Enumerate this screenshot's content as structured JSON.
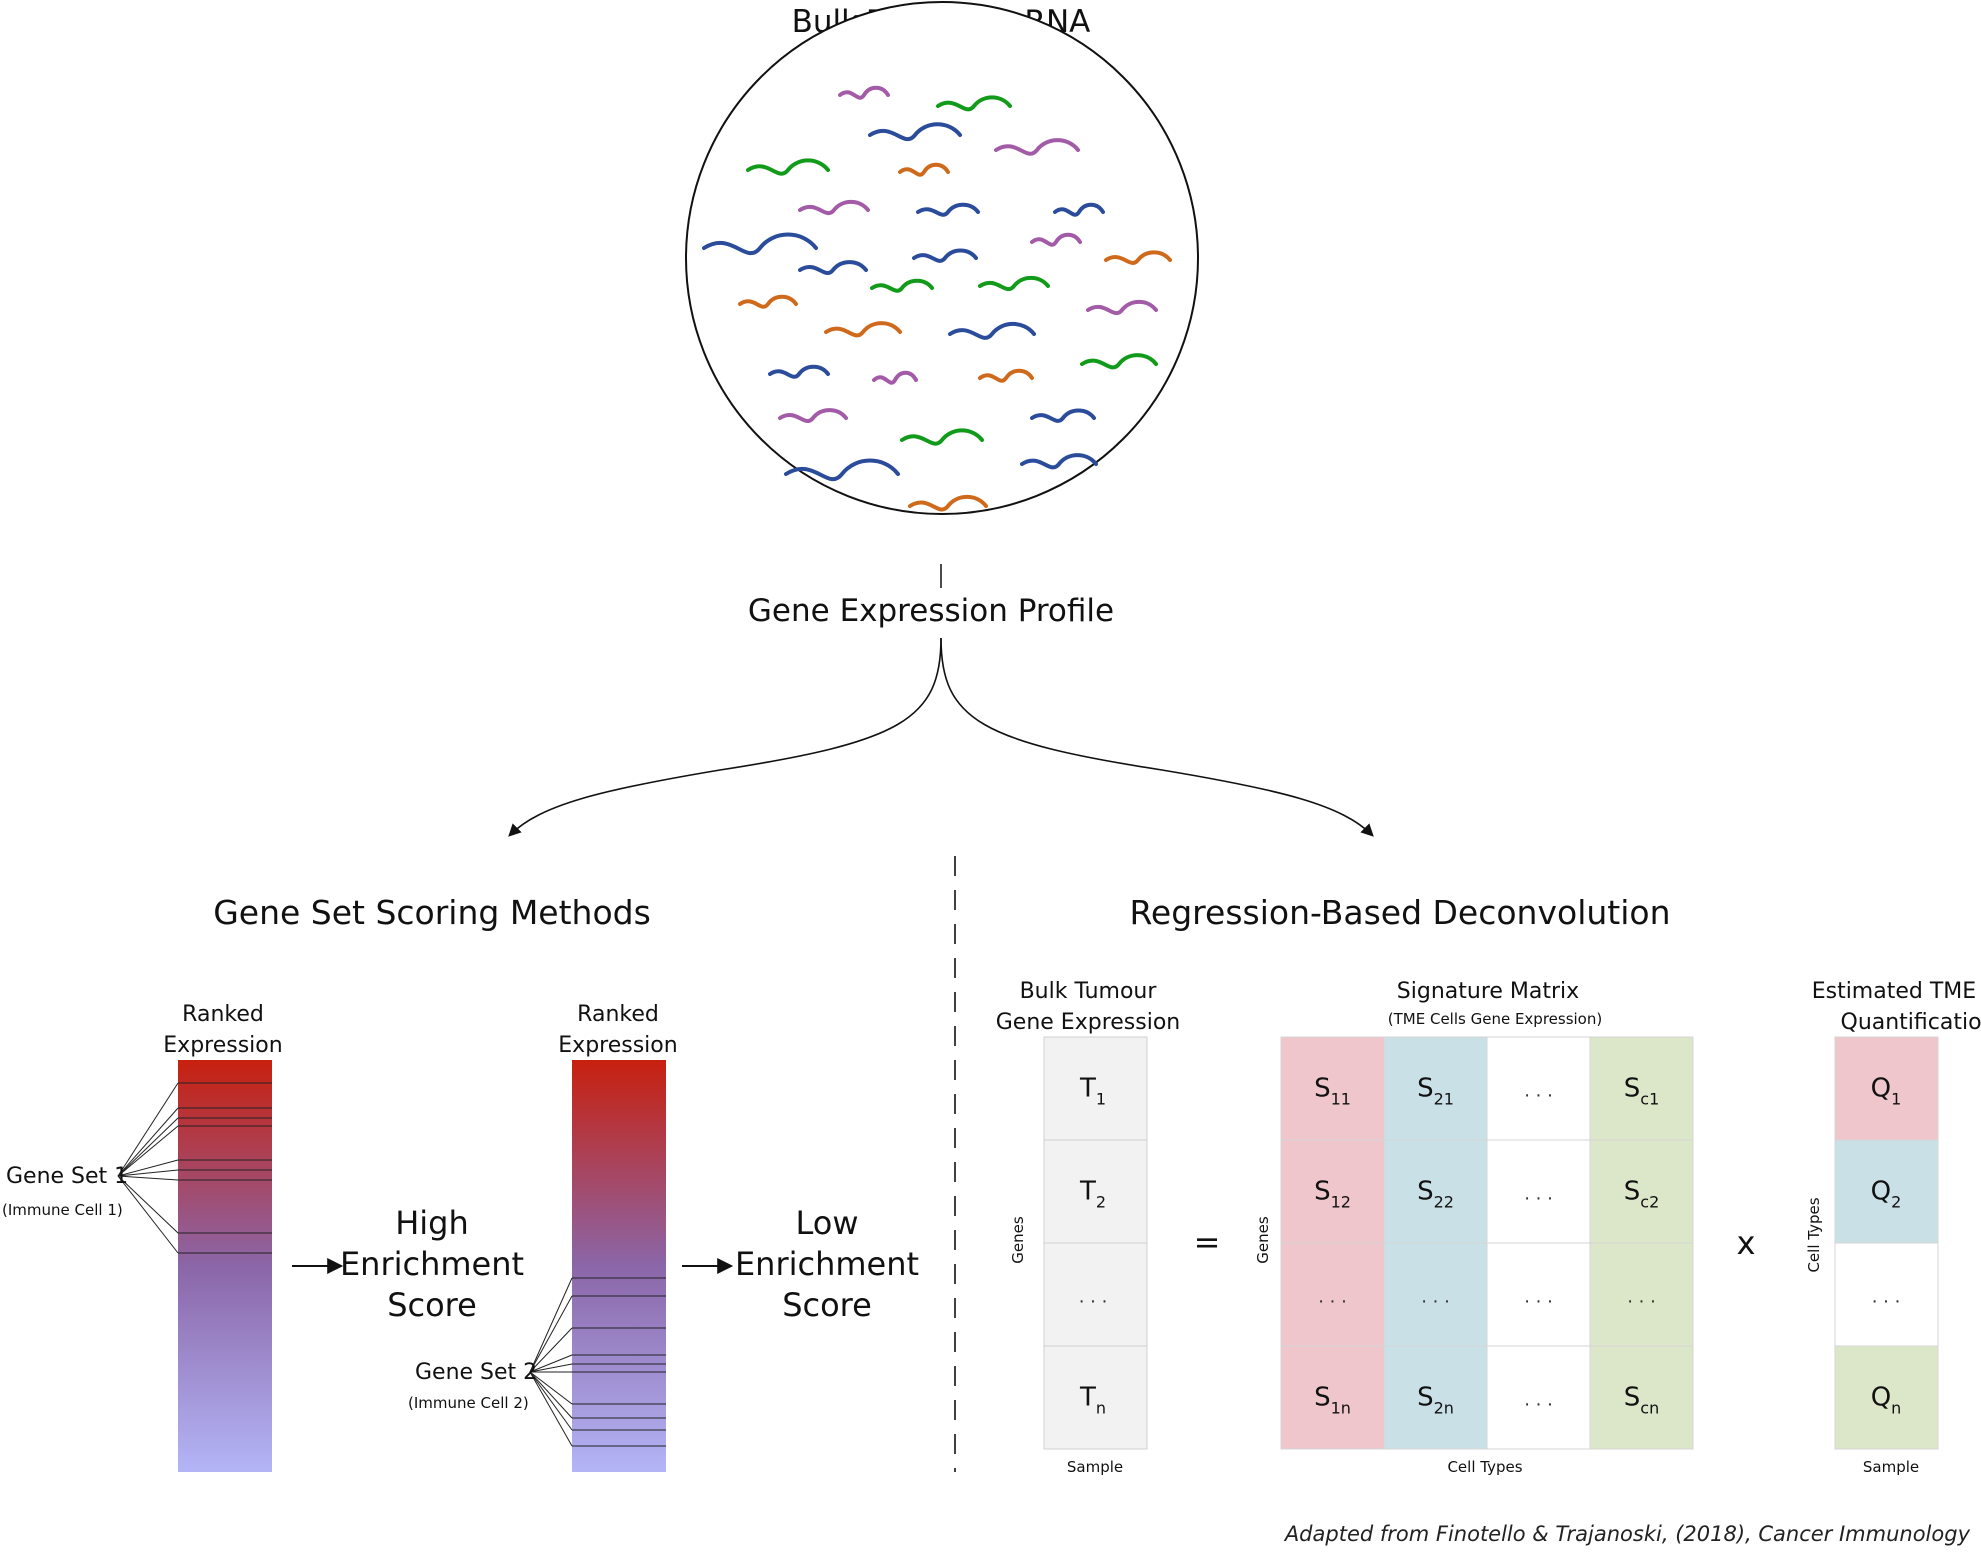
{
  "title": "Bulk Tumour mRNA",
  "profile_label": "Gene Expression Profile",
  "left_section": {
    "title": "Gene Set Scoring Methods",
    "bar1_label": [
      "Ranked",
      "Expression"
    ],
    "bar2_label": [
      "Ranked",
      "Expression"
    ],
    "gene_set_1": "Gene Set 1",
    "gene_set_1_sub": "(Immune Cell 1)",
    "gene_set_2": "Gene Set 2",
    "gene_set_2_sub": "(Immune Cell 2)",
    "high_score": [
      "High",
      "Enrichment",
      "Score"
    ],
    "low_score": [
      "Low",
      "Enrichment",
      "Score"
    ]
  },
  "right_section": {
    "title": "Regression-Based Deconvolution",
    "bulk_label": [
      "Bulk Tumour",
      "Gene Expression"
    ],
    "signature_label": "Signature Matrix",
    "signature_sub": "(TME Cells Gene Expression)",
    "estimated_label": [
      "Estimated TME Cell",
      "Quantification"
    ],
    "genes": "Genes",
    "cell_types": "Cell Types",
    "sample": "Sample",
    "equals": "=",
    "times": "x",
    "dots": "...",
    "T": [
      [
        "T",
        "1"
      ],
      [
        "T",
        "2"
      ],
      [
        "...",
        ""
      ],
      [
        "T",
        "n"
      ]
    ],
    "S": [
      [
        [
          "S",
          "11"
        ],
        [
          "S",
          "21"
        ],
        [
          "...",
          ""
        ],
        [
          "S",
          "c1"
        ]
      ],
      [
        [
          "S",
          "12"
        ],
        [
          "S",
          "22"
        ],
        [
          "...",
          ""
        ],
        [
          "S",
          "c2"
        ]
      ],
      [
        [
          "...",
          ""
        ],
        [
          "...",
          ""
        ],
        [
          "...",
          ""
        ],
        [
          "...",
          ""
        ]
      ],
      [
        [
          "S",
          "1n"
        ],
        [
          "S",
          "2n"
        ],
        [
          "...",
          ""
        ],
        [
          "S",
          "cn"
        ]
      ]
    ],
    "Q": [
      [
        "Q",
        "1"
      ],
      [
        "Q",
        "2"
      ],
      [
        "...",
        ""
      ],
      [
        "Q",
        "n"
      ]
    ]
  },
  "colors": {
    "purple": "#a35ba7",
    "green": "#129a1a",
    "blue": "#2b4c9b",
    "orange": "#cf6a1c",
    "red_top": "#c8200e",
    "mid_purple": "#8b66a8",
    "bottom_lilac": "#b3b5f7",
    "pink": "#eec6cc",
    "lightblue": "#c9e0e6",
    "lightgreen": "#dce6c8",
    "grey": "#f2f2f2"
  },
  "credit": "Adapted from Finotello & Trajanoski, (2018), Cancer Immunology"
}
